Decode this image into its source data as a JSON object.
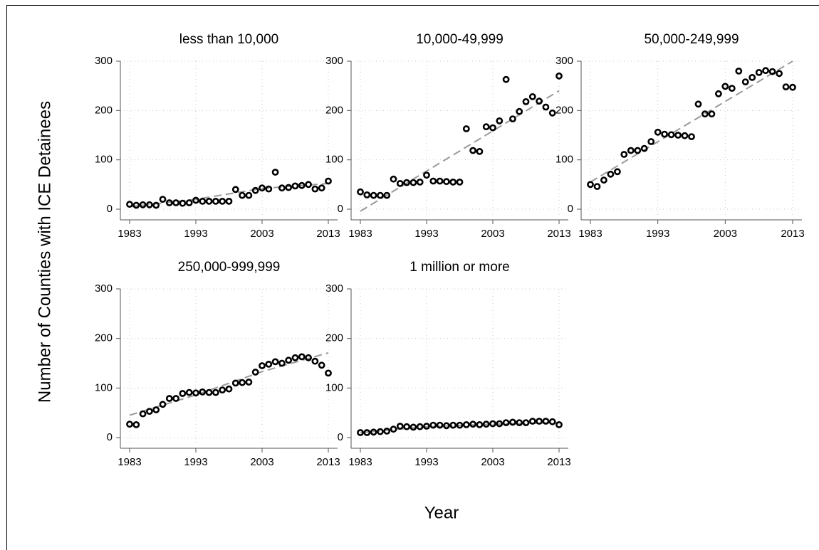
{
  "chart_data": {
    "type": "scatter",
    "xlabel": "Year",
    "ylabel": "Number of Counties with ICE Detainees",
    "x_ticks": [
      1983,
      1993,
      2003,
      2013
    ],
    "y_ticks": [
      0,
      100,
      200,
      300
    ],
    "xlim": [
      1983,
      2013
    ],
    "ylim": [
      0,
      300
    ],
    "grid": true,
    "panels": [
      {
        "title": "less than 10,000",
        "x": [
          1983,
          1984,
          1985,
          1986,
          1987,
          1988,
          1989,
          1990,
          1991,
          1992,
          1993,
          1994,
          1995,
          1996,
          1997,
          1998,
          1999,
          2000,
          2001,
          2002,
          2003,
          2004,
          2005,
          2006,
          2007,
          2008,
          2009,
          2010,
          2011,
          2012,
          2013
        ],
        "values": [
          10,
          8,
          9,
          9,
          8,
          20,
          13,
          13,
          12,
          13,
          18,
          16,
          16,
          16,
          16,
          16,
          40,
          28,
          28,
          38,
          43,
          41,
          75,
          43,
          44,
          47,
          48,
          50,
          41,
          43,
          57
        ],
        "trend": [
          [
            1983,
            5
          ],
          [
            1993,
            20
          ],
          [
            2003,
            42
          ],
          [
            2013,
            52
          ]
        ]
      },
      {
        "title": "10,000-49,999",
        "x": [
          1983,
          1984,
          1985,
          1986,
          1987,
          1988,
          1989,
          1990,
          1991,
          1992,
          1993,
          1994,
          1995,
          1996,
          1997,
          1998,
          1999,
          2000,
          2001,
          2002,
          2003,
          2004,
          2005,
          2006,
          2007,
          2008,
          2009,
          2010,
          2011,
          2012,
          2013
        ],
        "values": [
          35,
          29,
          28,
          28,
          28,
          61,
          52,
          54,
          54,
          55,
          69,
          57,
          57,
          56,
          55,
          55,
          163,
          119,
          117,
          167,
          165,
          179,
          263,
          183,
          198,
          218,
          228,
          219,
          207,
          195,
          270
        ],
        "trend": [
          [
            1983,
            -4
          ],
          [
            2013,
            240
          ]
        ]
      },
      {
        "title": "50,000-249,999",
        "x": [
          1983,
          1984,
          1985,
          1986,
          1987,
          1988,
          1989,
          1990,
          1991,
          1992,
          1993,
          1994,
          1995,
          1996,
          1997,
          1998,
          1999,
          2000,
          2001,
          2002,
          2003,
          2004,
          2005,
          2006,
          2007,
          2008,
          2009,
          2010,
          2011,
          2012,
          2013
        ],
        "values": [
          50,
          46,
          59,
          71,
          76,
          111,
          119,
          119,
          123,
          137,
          156,
          152,
          151,
          150,
          149,
          147,
          213,
          193,
          193,
          234,
          249,
          245,
          280,
          258,
          267,
          277,
          281,
          279,
          275,
          248,
          247
        ],
        "trend": [
          [
            1983,
            55
          ],
          [
            2013,
            300
          ]
        ]
      },
      {
        "title": "250,000-999,999",
        "x": [
          1983,
          1984,
          1985,
          1986,
          1987,
          1988,
          1989,
          1990,
          1991,
          1992,
          1993,
          1994,
          1995,
          1996,
          1997,
          1998,
          1999,
          2000,
          2001,
          2002,
          2003,
          2004,
          2005,
          2006,
          2007,
          2008,
          2009,
          2010,
          2011,
          2012,
          2013
        ],
        "values": [
          27,
          26,
          48,
          53,
          56,
          67,
          79,
          79,
          89,
          91,
          90,
          92,
          91,
          91,
          96,
          98,
          110,
          111,
          112,
          132,
          145,
          148,
          153,
          150,
          156,
          161,
          163,
          161,
          154,
          146,
          130
        ],
        "trend": [
          [
            1983,
            45
          ],
          [
            1993,
            86
          ],
          [
            2003,
            133
          ],
          [
            2013,
            171
          ]
        ]
      },
      {
        "title": "1 million or more",
        "x": [
          1983,
          1984,
          1985,
          1986,
          1987,
          1988,
          1989,
          1990,
          1991,
          1992,
          1993,
          1994,
          1995,
          1996,
          1997,
          1998,
          1999,
          2000,
          2001,
          2002,
          2003,
          2004,
          2005,
          2006,
          2007,
          2008,
          2009,
          2010,
          2011,
          2012,
          2013
        ],
        "values": [
          10,
          10,
          11,
          12,
          13,
          17,
          23,
          22,
          21,
          22,
          23,
          25,
          25,
          24,
          25,
          25,
          26,
          27,
          26,
          27,
          28,
          28,
          30,
          31,
          30,
          30,
          33,
          33,
          33,
          32,
          26
        ],
        "trend": [
          [
            1983,
            10
          ],
          [
            1993,
            22
          ],
          [
            2003,
            27
          ],
          [
            2013,
            30
          ]
        ]
      }
    ]
  }
}
